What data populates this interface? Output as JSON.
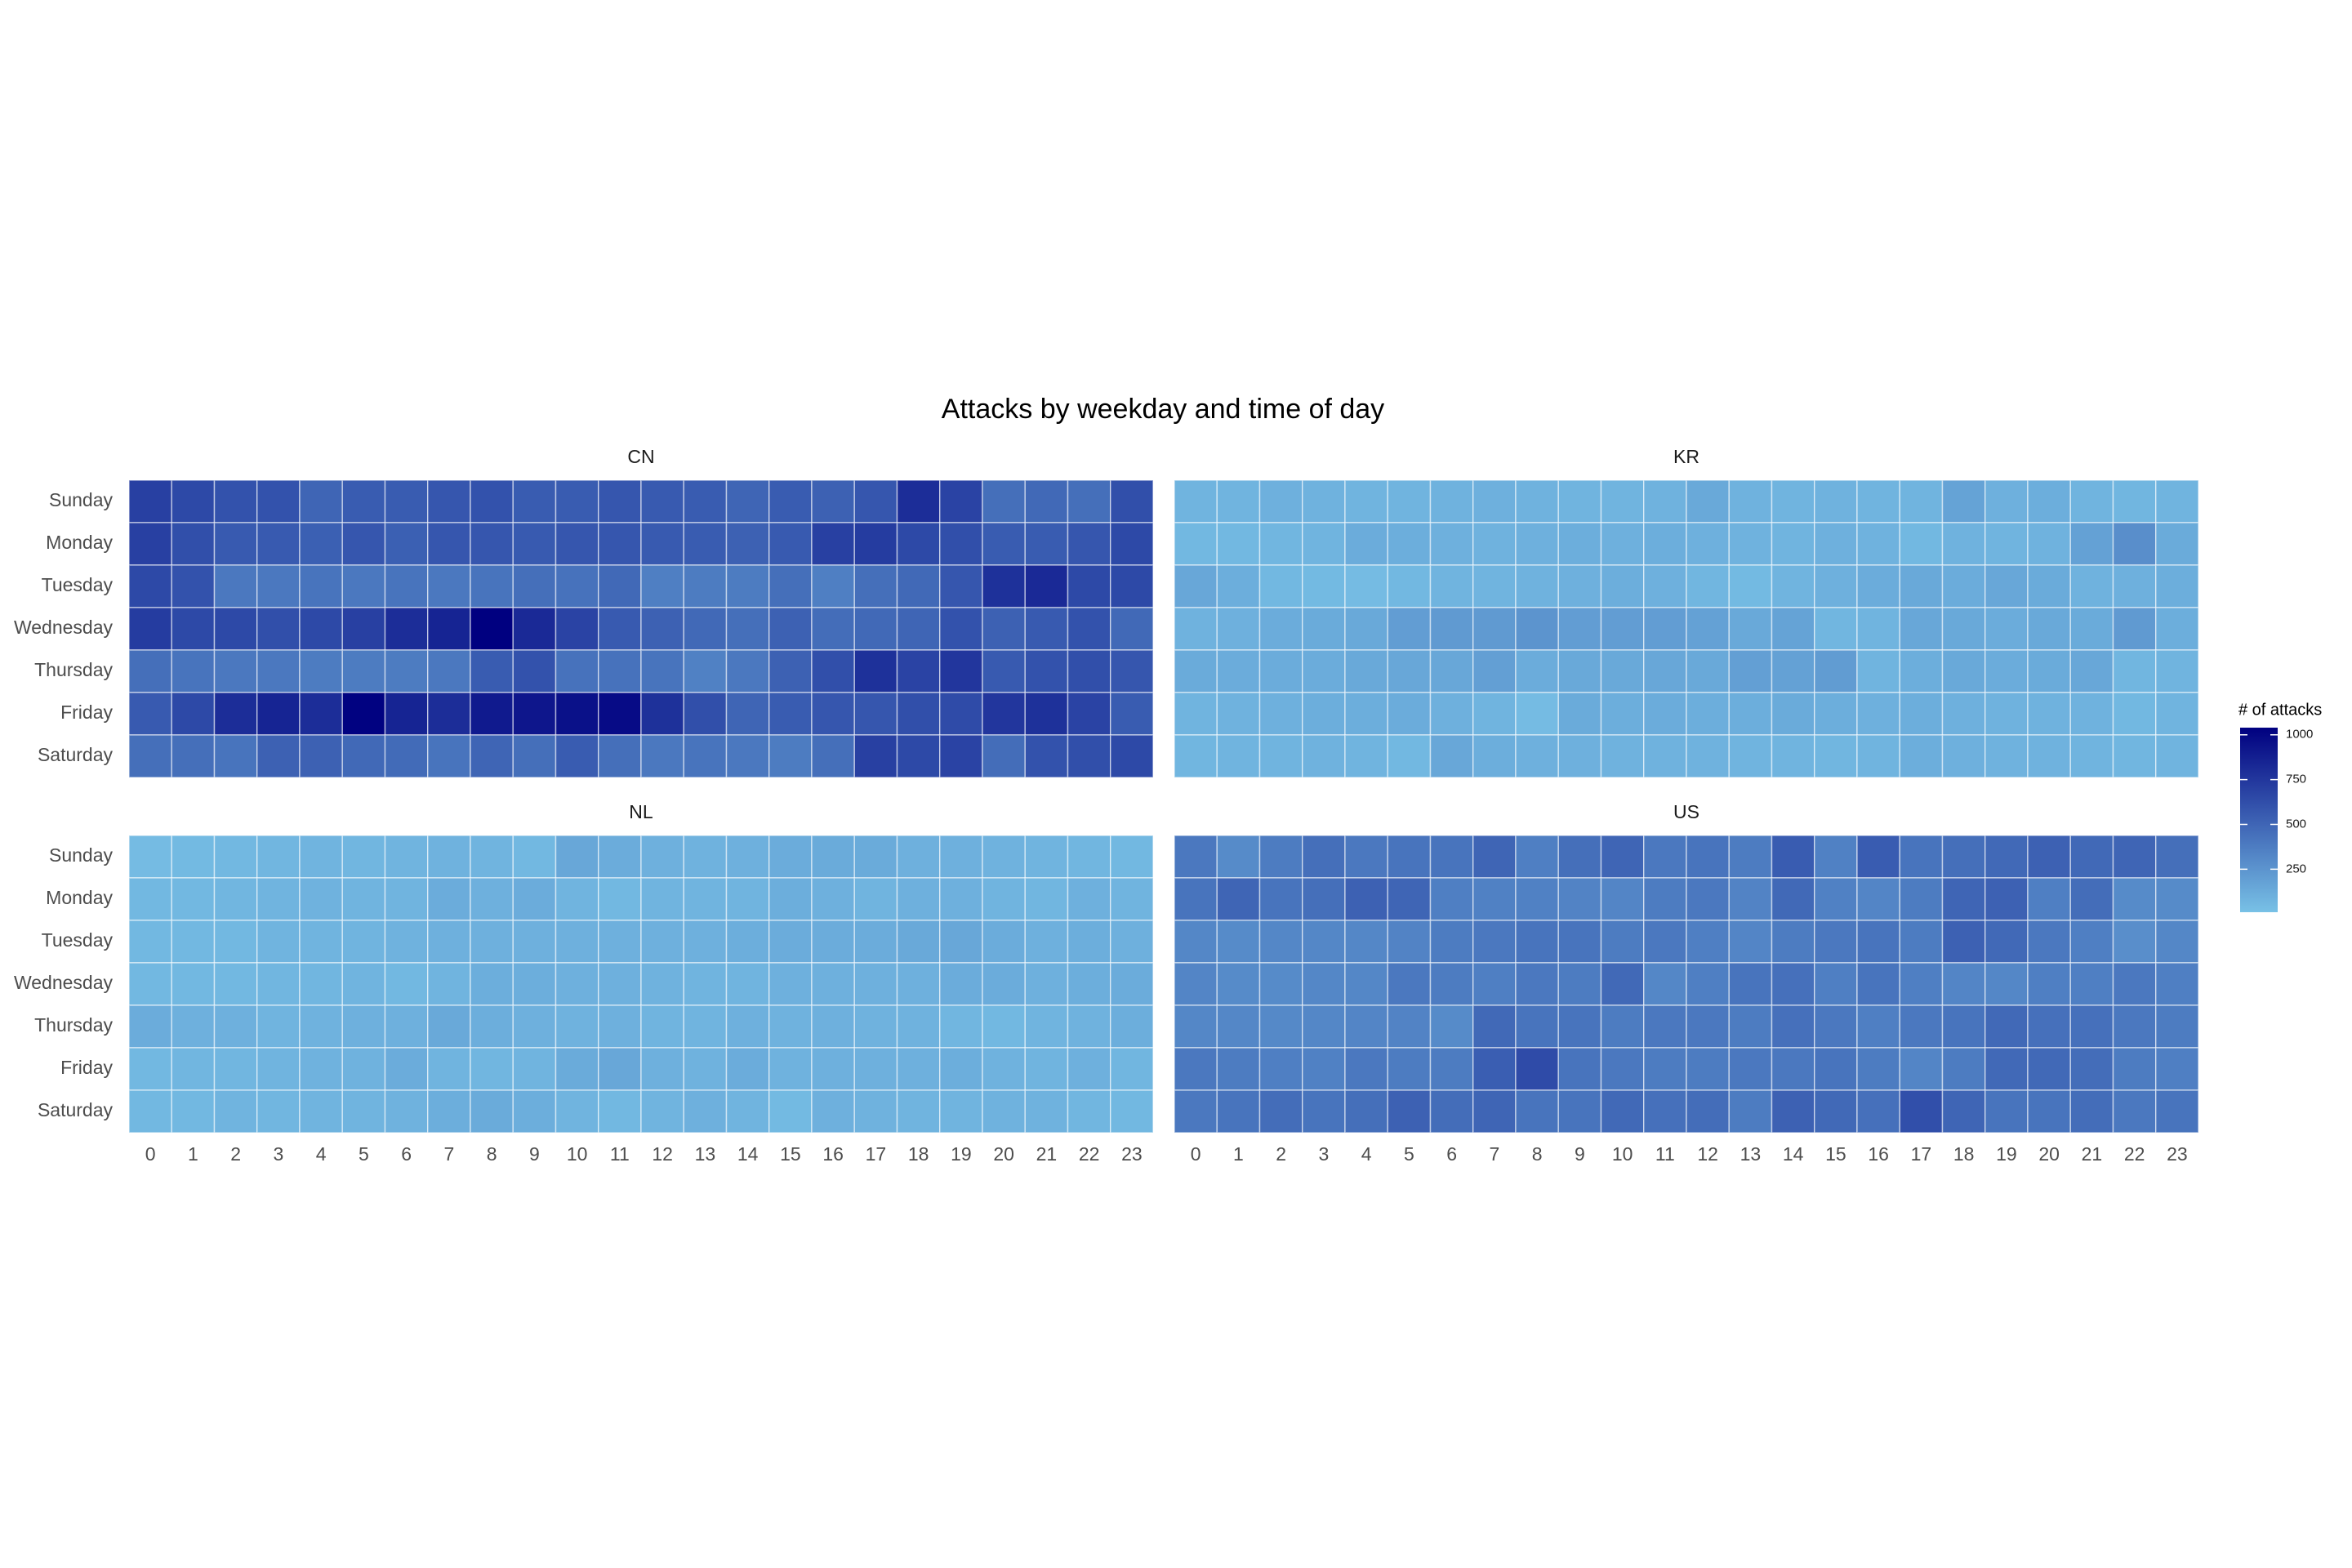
{
  "chart_data": {
    "type": "heatmap",
    "title": "Attacks by weekday and time of day",
    "x": [
      0,
      1,
      2,
      3,
      4,
      5,
      6,
      7,
      8,
      9,
      10,
      11,
      12,
      13,
      14,
      15,
      16,
      17,
      18,
      19,
      20,
      21,
      22,
      23
    ],
    "y": [
      "Sunday",
      "Monday",
      "Tuesday",
      "Wednesday",
      "Thursday",
      "Friday",
      "Saturday"
    ],
    "colorbar": {
      "title": "# of attacks",
      "lim": [
        10,
        1040
      ],
      "ticks": [
        250,
        500,
        750,
        1000
      ],
      "low": "#78c1e6",
      "high": "#000080"
    },
    "facets": [
      {
        "label": "CN",
        "values": [
          [
            700,
            650,
            600,
            600,
            500,
            550,
            550,
            580,
            600,
            550,
            550,
            580,
            560,
            550,
            500,
            550,
            520,
            580,
            800,
            680,
            450,
            480,
            450,
            620
          ],
          [
            700,
            620,
            560,
            560,
            530,
            580,
            530,
            580,
            580,
            560,
            580,
            580,
            560,
            550,
            520,
            560,
            700,
            720,
            650,
            620,
            550,
            550,
            580,
            650
          ],
          [
            650,
            600,
            400,
            400,
            420,
            400,
            420,
            400,
            420,
            450,
            430,
            480,
            360,
            380,
            380,
            450,
            360,
            450,
            480,
            580,
            780,
            820,
            650,
            650
          ],
          [
            720,
            650,
            650,
            620,
            650,
            700,
            800,
            850,
            1040,
            820,
            680,
            560,
            520,
            480,
            450,
            520,
            460,
            480,
            500,
            600,
            520,
            560,
            600,
            480
          ],
          [
            450,
            420,
            400,
            400,
            380,
            380,
            380,
            400,
            550,
            600,
            430,
            430,
            420,
            350,
            400,
            520,
            620,
            780,
            680,
            750,
            560,
            600,
            620,
            580
          ],
          [
            560,
            650,
            800,
            850,
            800,
            1030,
            850,
            800,
            900,
            920,
            950,
            980,
            780,
            620,
            500,
            550,
            580,
            580,
            620,
            640,
            750,
            780,
            680,
            550
          ],
          [
            450,
            450,
            420,
            520,
            520,
            480,
            470,
            420,
            500,
            450,
            550,
            450,
            400,
            420,
            400,
            380,
            450,
            700,
            650,
            680,
            460,
            600,
            620,
            650
          ]
        ]
      },
      {
        "label": "KR",
        "values": [
          [
            80,
            80,
            100,
            90,
            80,
            80,
            90,
            100,
            90,
            80,
            80,
            90,
            140,
            90,
            80,
            90,
            80,
            80,
            170,
            100,
            110,
            80,
            70,
            80
          ],
          [
            60,
            60,
            70,
            80,
            120,
            110,
            100,
            90,
            100,
            110,
            100,
            110,
            100,
            90,
            80,
            100,
            90,
            60,
            90,
            80,
            90,
            180,
            280,
            130
          ],
          [
            150,
            110,
            60,
            50,
            40,
            60,
            80,
            80,
            90,
            100,
            110,
            100,
            70,
            50,
            80,
            100,
            120,
            140,
            120,
            150,
            130,
            90,
            100,
            110
          ],
          [
            90,
            100,
            120,
            130,
            140,
            200,
            220,
            220,
            250,
            200,
            200,
            200,
            180,
            140,
            170,
            70,
            80,
            150,
            140,
            120,
            140,
            130,
            220,
            110
          ],
          [
            130,
            120,
            120,
            120,
            140,
            150,
            150,
            190,
            120,
            140,
            140,
            150,
            140,
            190,
            180,
            210,
            80,
            110,
            140,
            120,
            130,
            150,
            70,
            80
          ],
          [
            80,
            90,
            100,
            110,
            110,
            120,
            100,
            80,
            40,
            130,
            110,
            120,
            110,
            110,
            130,
            110,
            100,
            110,
            100,
            90,
            90,
            90,
            60,
            80
          ],
          [
            70,
            80,
            80,
            90,
            80,
            60,
            150,
            110,
            100,
            100,
            90,
            90,
            90,
            80,
            80,
            70,
            80,
            110,
            100,
            90,
            90,
            80,
            70,
            80
          ]
        ]
      },
      {
        "label": "NL",
        "values": [
          [
            40,
            50,
            60,
            70,
            80,
            70,
            80,
            90,
            80,
            60,
            150,
            120,
            100,
            90,
            100,
            120,
            130,
            130,
            100,
            100,
            90,
            80,
            70,
            60
          ],
          [
            60,
            60,
            70,
            80,
            90,
            80,
            80,
            120,
            100,
            120,
            80,
            60,
            80,
            80,
            80,
            110,
            100,
            80,
            100,
            100,
            80,
            70,
            100,
            80
          ],
          [
            60,
            60,
            60,
            80,
            80,
            80,
            90,
            100,
            100,
            100,
            100,
            100,
            100,
            100,
            110,
            120,
            120,
            120,
            140,
            150,
            120,
            100,
            110,
            100
          ],
          [
            60,
            60,
            60,
            70,
            70,
            80,
            60,
            80,
            110,
            110,
            100,
            100,
            90,
            80,
            80,
            100,
            100,
            100,
            100,
            120,
            120,
            100,
            110,
            120
          ],
          [
            120,
            100,
            100,
            80,
            90,
            100,
            100,
            140,
            110,
            100,
            90,
            100,
            80,
            80,
            100,
            90,
            100,
            90,
            90,
            70,
            60,
            80,
            90,
            110
          ],
          [
            60,
            70,
            70,
            80,
            90,
            90,
            120,
            80,
            70,
            80,
            130,
            150,
            100,
            90,
            120,
            90,
            100,
            100,
            100,
            110,
            90,
            80,
            100,
            70
          ],
          [
            60,
            60,
            80,
            70,
            80,
            80,
            90,
            110,
            130,
            110,
            80,
            60,
            80,
            100,
            80,
            50,
            100,
            90,
            80,
            80,
            90,
            90,
            70,
            60
          ]
        ]
      },
      {
        "label": "US",
        "values": [
          [
            400,
            300,
            380,
            450,
            400,
            420,
            420,
            500,
            360,
            450,
            500,
            400,
            420,
            380,
            550,
            350,
            550,
            420,
            450,
            480,
            520,
            480,
            500,
            450
          ],
          [
            420,
            500,
            420,
            450,
            520,
            500,
            360,
            350,
            350,
            340,
            330,
            380,
            400,
            340,
            480,
            350,
            330,
            380,
            500,
            520,
            360,
            460,
            300,
            300
          ],
          [
            320,
            300,
            320,
            320,
            320,
            340,
            380,
            400,
            420,
            420,
            380,
            400,
            360,
            330,
            380,
            400,
            420,
            380,
            520,
            480,
            400,
            360,
            280,
            320
          ],
          [
            330,
            300,
            300,
            320,
            320,
            400,
            380,
            360,
            400,
            380,
            480,
            320,
            360,
            420,
            440,
            360,
            420,
            360,
            330,
            320,
            360,
            360,
            400,
            360
          ],
          [
            320,
            320,
            310,
            320,
            330,
            340,
            300,
            480,
            420,
            420,
            380,
            400,
            400,
            380,
            440,
            400,
            360,
            400,
            420,
            480,
            440,
            440,
            400,
            380
          ],
          [
            400,
            380,
            360,
            350,
            400,
            380,
            380,
            540,
            640,
            420,
            400,
            380,
            380,
            400,
            400,
            420,
            380,
            330,
            380,
            480,
            480,
            460,
            380,
            360
          ],
          [
            400,
            420,
            460,
            420,
            450,
            520,
            460,
            500,
            420,
            420,
            480,
            440,
            460,
            380,
            520,
            480,
            440,
            620,
            500,
            420,
            420,
            460,
            400,
            420
          ]
        ]
      }
    ]
  }
}
